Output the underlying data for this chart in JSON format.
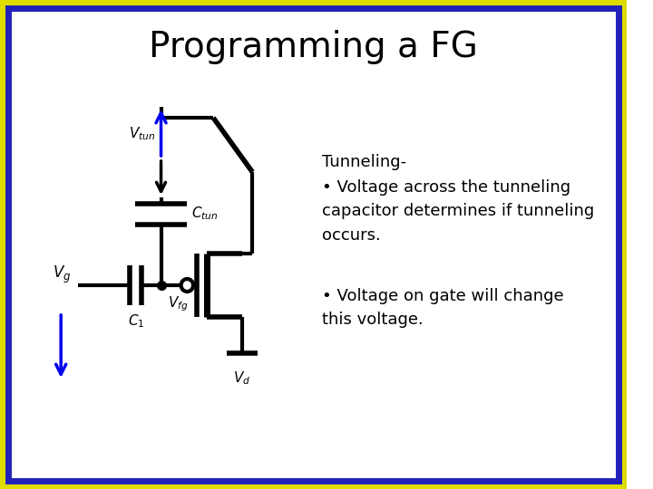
{
  "title": "Programming a FG",
  "title_fontsize": 28,
  "background_color": "#ffffff",
  "border_outer_color": "#2222bb",
  "border_inner_color": "#dddd00",
  "text_color": "#000000",
  "tunneling_header": "Tunneling-",
  "bullet1": "• Voltage across the tunneling\ncapacitor determines if tunneling\noccurs.",
  "bullet2": "• Voltage on gate will change\nthis voltage.",
  "arrow_color": "#0000ee",
  "circuit_color": "#000000",
  "label_Vtun": "$V_{tun}$",
  "label_Ctun": "$C_{tun}$",
  "label_Vg": "$V_g$",
  "label_C1": "$C_1$",
  "label_Vfg": "$V_{fg}$",
  "label_Vd": "$V_d$",
  "text_fontsize": 13
}
